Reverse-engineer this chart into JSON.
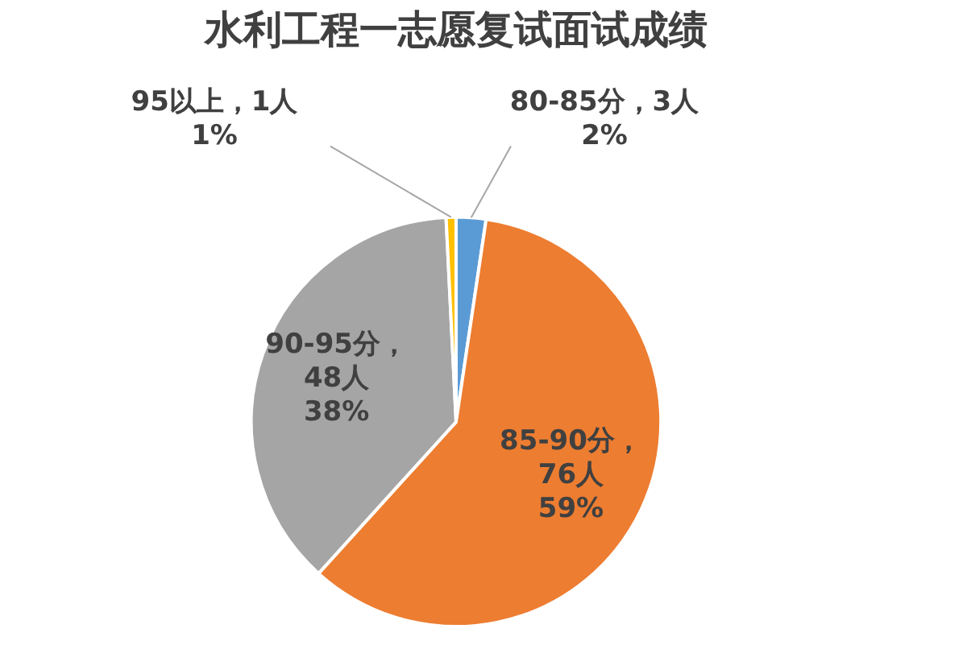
{
  "chart_data": {
    "type": "pie",
    "title": "水利工程一志愿复试面试成绩",
    "categories": [
      "80-85分",
      "85-90分",
      "90-95分",
      "95以上"
    ],
    "values": [
      3,
      76,
      48,
      1
    ],
    "colors": [
      "#5b9bd5",
      "#ed7d31",
      "#a5a5a5",
      "#ffc000"
    ],
    "value_labels": [
      "，3人\n2%",
      "，\n76人\n59%",
      "，\n48人\n38%",
      "，1人\n1%"
    ],
    "legend": false
  }
}
